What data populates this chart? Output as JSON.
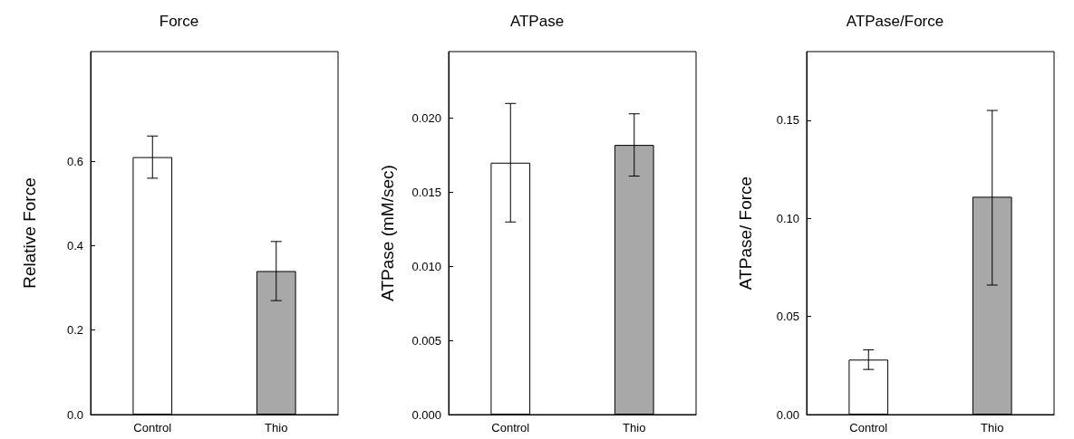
{
  "chart_data": [
    {
      "type": "bar",
      "title": "Force",
      "ylabel": "Relative Force",
      "categories": [
        "Control",
        "Thio"
      ],
      "values": [
        0.61,
        0.34
      ],
      "colors": [
        "#ffffff",
        "#a8a8a8"
      ],
      "errors": [
        [
          0.56,
          0.66
        ],
        [
          0.27,
          0.41
        ]
      ],
      "ylim": [
        0,
        0.86
      ],
      "yticks": [
        {
          "value": 0,
          "label": "0.0"
        },
        0.2,
        0.4,
        0.6
      ]
    },
    {
      "type": "bar",
      "title": "ATPase",
      "ylabel": "ATPase (mM/sec)",
      "categories": [
        "Control",
        "Thio"
      ],
      "values": [
        0.017,
        0.0182
      ],
      "colors": [
        "#ffffff",
        "#a8a8a8"
      ],
      "errors": [
        [
          0.013,
          0.021
        ],
        [
          0.0161,
          0.0203
        ]
      ],
      "ylim": [
        0,
        0.0245
      ],
      "yticks": [
        {
          "value": 0,
          "label": "0.000"
        },
        {
          "value": 0.005,
          "label": "0.005"
        },
        {
          "value": 0.01,
          "label": "0.010"
        },
        {
          "value": 0.015,
          "label": "0.015"
        },
        {
          "value": 0.02,
          "label": "0.020"
        }
      ]
    },
    {
      "type": "bar",
      "title": "ATPase/Force",
      "ylabel": "ATPase/ Force",
      "categories": [
        "Control",
        "Thio"
      ],
      "values": [
        0.028,
        0.111
      ],
      "colors": [
        "#ffffff",
        "#a8a8a8"
      ],
      "errors": [
        [
          0.023,
          0.033
        ],
        [
          0.066,
          0.155
        ]
      ],
      "ylim": [
        0,
        0.185
      ],
      "yticks": [
        {
          "value": 0,
          "label": "0.00"
        },
        0.05,
        {
          "value": 0.1,
          "label": "0.10"
        },
        0.15
      ]
    }
  ]
}
